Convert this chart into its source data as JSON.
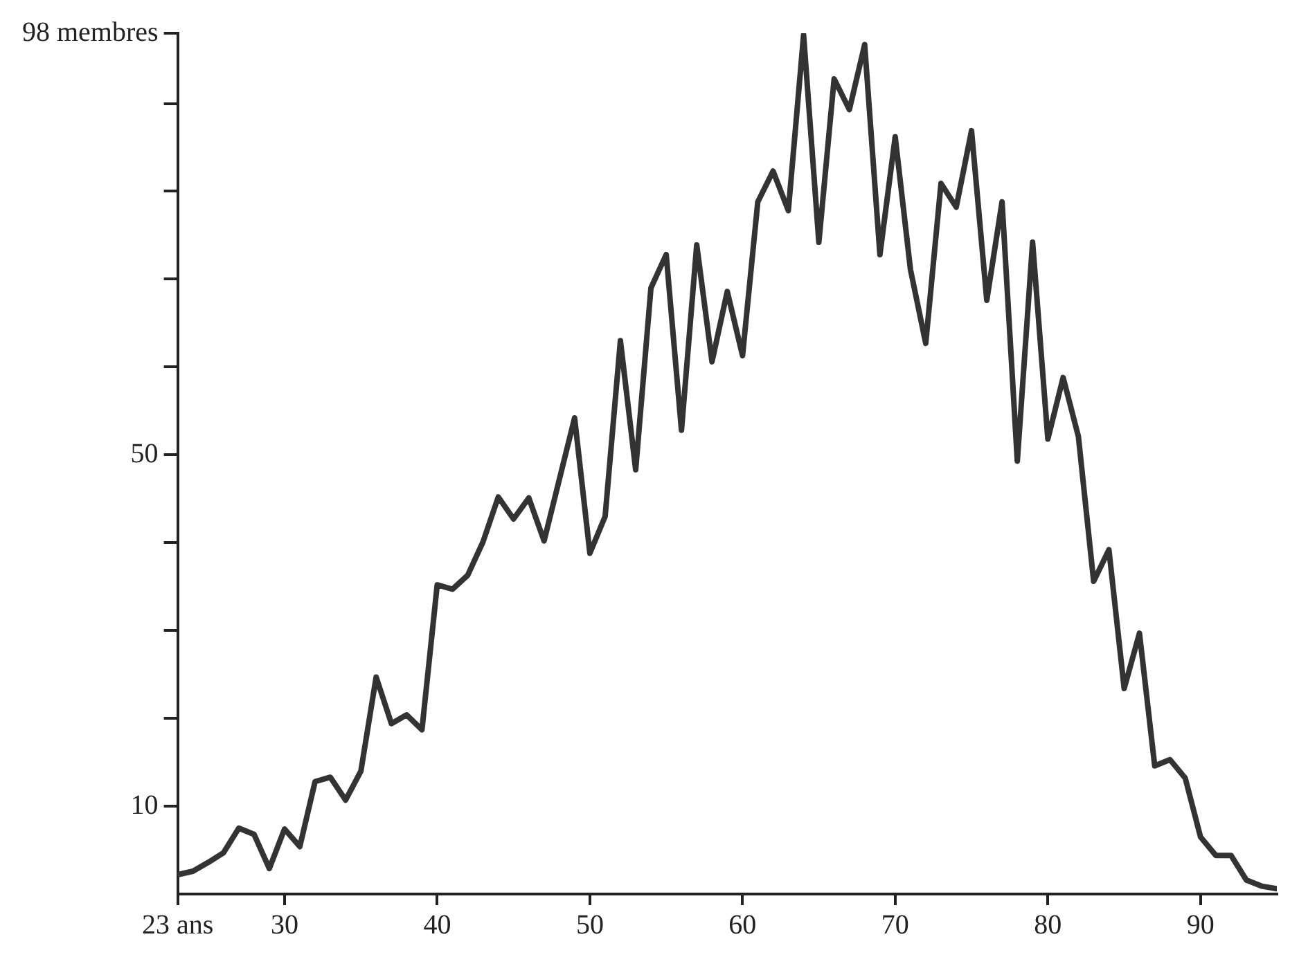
{
  "chart_data": {
    "type": "line",
    "color": "#333333",
    "marker": "none",
    "line_style": "solid",
    "grid": false,
    "legend": false,
    "x": [
      23,
      24,
      25,
      26,
      27,
      28,
      29,
      30,
      31,
      32,
      33,
      34,
      35,
      36,
      37,
      38,
      39,
      40,
      41,
      42,
      43,
      44,
      45,
      46,
      47,
      49,
      50,
      51,
      52,
      53,
      54,
      55,
      56,
      57,
      58,
      59,
      60,
      61,
      62,
      63,
      64,
      65,
      66,
      67,
      68,
      69,
      70,
      71,
      72,
      73,
      74,
      75,
      76,
      77,
      78,
      79,
      80,
      81,
      82,
      83,
      84,
      85,
      86,
      87,
      88,
      89,
      90,
      91,
      92,
      93,
      94,
      95
    ],
    "values": [
      2.2,
      2.6,
      3.6,
      4.7,
      7.5,
      6.8,
      2.9,
      7.4,
      5.4,
      12.8,
      13.3,
      10.7,
      14,
      24.7,
      19.4,
      20.4,
      18.7,
      35.2,
      34.7,
      36.3,
      40.1,
      45.2,
      42.7,
      45.1,
      40.2,
      54.2,
      38.8,
      43,
      63,
      48.3,
      69,
      72.8,
      52.8,
      73.9,
      60.6,
      68.6,
      61.3,
      78.8,
      82.3,
      77.8,
      97.8,
      74.2,
      92.8,
      89.3,
      96.7,
      72.8,
      86.2,
      71.1,
      62.7,
      80.9,
      78.2,
      86.9,
      67.6,
      78.8,
      49.3,
      74.2,
      51.8,
      58.8,
      52.1,
      35.6,
      39.2,
      23.4,
      29.7,
      14.6,
      15.3,
      13.2,
      6.5,
      4.4,
      4.4,
      1.6,
      0.9,
      0.6
    ],
    "xlim": [
      23,
      95
    ],
    "xticks": [
      {
        "value": 23,
        "label": "23 ans"
      },
      30,
      40,
      50,
      60,
      70,
      80,
      90
    ],
    "ylim": [
      0,
      98
    ],
    "yticks": [
      10,
      {
        "value": 20,
        "label": null
      },
      {
        "value": 30,
        "label": null
      },
      {
        "value": 40,
        "label": null
      },
      50,
      {
        "value": 60,
        "label": null
      },
      {
        "value": 70,
        "label": null
      },
      {
        "value": 80,
        "label": null
      },
      {
        "value": 90,
        "label": null
      },
      {
        "value": 98,
        "label": "98 membres"
      }
    ]
  }
}
